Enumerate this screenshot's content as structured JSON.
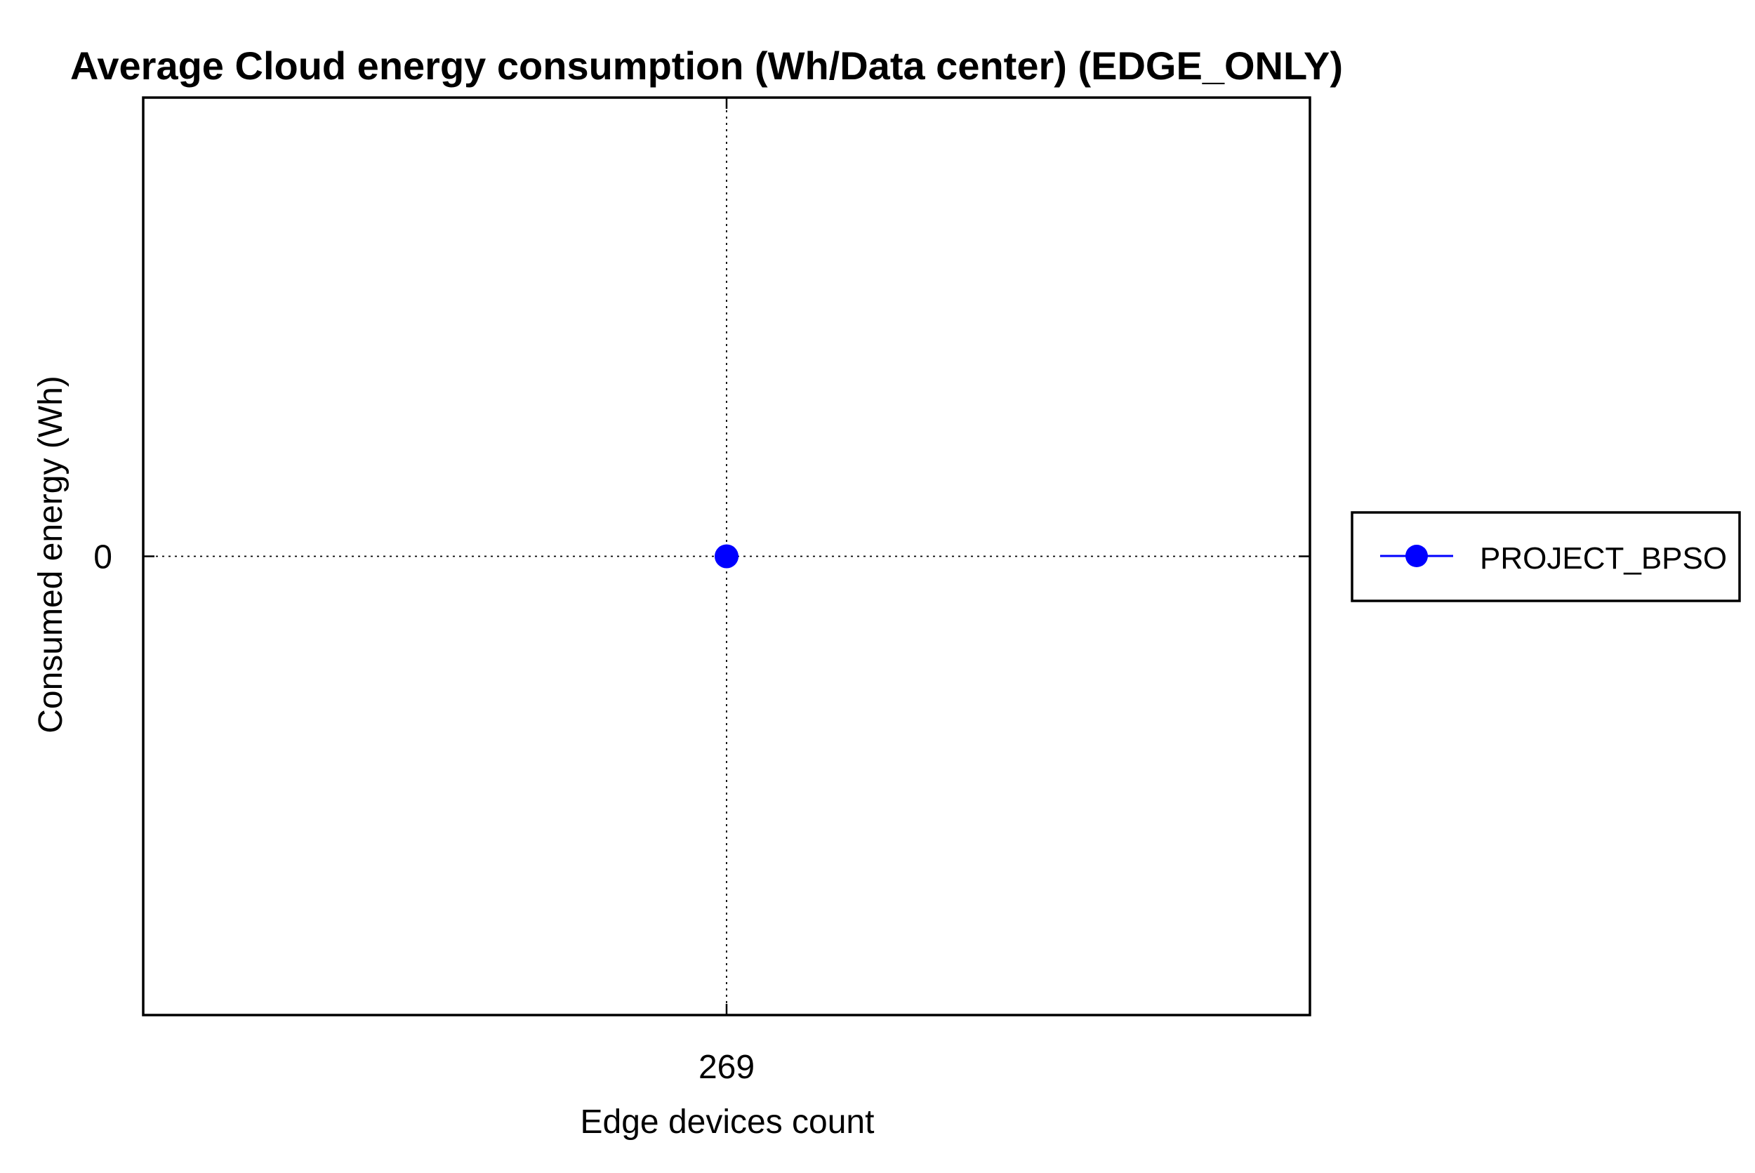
{
  "chart_data": {
    "type": "line",
    "title": "Average Cloud energy consumption (Wh/Data center) (EDGE_ONLY)",
    "xlabel": "Edge devices count",
    "ylabel": "Consumed energy (Wh)",
    "x_ticks": [
      "269"
    ],
    "y_ticks": [
      "0"
    ],
    "grid": true,
    "legend_position": "right-outside",
    "series": [
      {
        "name": "PROJECT_BPSO",
        "color": "#0000ff",
        "marker": "circle",
        "points": [
          {
            "x": 269,
            "y": 0
          }
        ]
      }
    ]
  }
}
